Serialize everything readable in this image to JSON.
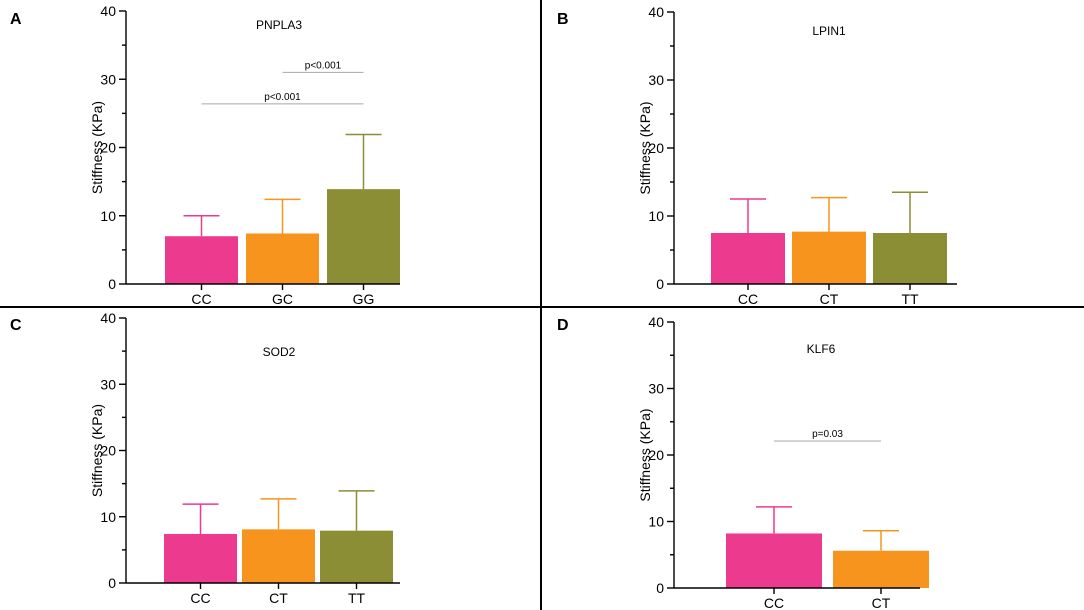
{
  "panels": [
    {
      "label": "A",
      "title": "PNPLA3"
    },
    {
      "label": "B",
      "title": "LPIN1"
    },
    {
      "label": "C",
      "title": "SOD2"
    },
    {
      "label": "D",
      "title": "KLF6"
    }
  ],
  "colors": {
    "pink": "#ec3a8f",
    "orange": "#f7941d",
    "olive": "#8c8e35"
  },
  "chart_data": [
    {
      "type": "bar",
      "title": "PNPLA3",
      "ylabel": "Stiffness (KPa)",
      "ylim": [
        0,
        40
      ],
      "yticks": [
        0,
        10,
        20,
        30,
        40
      ],
      "categories": [
        "CC",
        "GC",
        "GG"
      ],
      "values": [
        7.0,
        7.4,
        13.9
      ],
      "error_upper": [
        10.0,
        12.4,
        21.9
      ],
      "bar_colors": [
        "#ec3a8f",
        "#f7941d",
        "#8c8e35"
      ],
      "annotations": [
        {
          "text": "p<0.001",
          "from": 1,
          "to": 2,
          "y": 31.0
        },
        {
          "text": "p<0.001",
          "from": 0,
          "to": 2,
          "y": 26.4
        }
      ]
    },
    {
      "type": "bar",
      "title": "LPIN1",
      "ylabel": "Stiffness (KPa)",
      "ylim": [
        0,
        40
      ],
      "yticks": [
        0,
        10,
        20,
        30,
        40
      ],
      "categories": [
        "CC",
        "CT",
        "TT"
      ],
      "values": [
        7.5,
        7.7,
        7.5
      ],
      "error_upper": [
        12.5,
        12.7,
        13.5
      ],
      "bar_colors": [
        "#ec3a8f",
        "#f7941d",
        "#8c8e35"
      ],
      "annotations": []
    },
    {
      "type": "bar",
      "title": "SOD2",
      "ylabel": "Stiffness (KPa)",
      "ylim": [
        0,
        40
      ],
      "yticks": [
        0,
        10,
        20,
        30,
        40
      ],
      "categories": [
        "CC",
        "CT",
        "TT"
      ],
      "values": [
        7.4,
        8.1,
        7.9
      ],
      "error_upper": [
        11.9,
        12.7,
        13.9
      ],
      "bar_colors": [
        "#ec3a8f",
        "#f7941d",
        "#8c8e35"
      ],
      "annotations": []
    },
    {
      "type": "bar",
      "title": "KLF6",
      "ylabel": "Stiffness (KPa)",
      "ylim": [
        0,
        40
      ],
      "yticks": [
        0,
        10,
        20,
        30,
        40
      ],
      "categories": [
        "CC",
        "CT"
      ],
      "values": [
        8.2,
        5.6
      ],
      "error_upper": [
        12.2,
        8.6
      ],
      "bar_colors": [
        "#ec3a8f",
        "#f7941d"
      ],
      "annotations": [
        {
          "text": "p=0.03",
          "from": 0,
          "to": 1,
          "y": 22.1
        }
      ]
    }
  ]
}
